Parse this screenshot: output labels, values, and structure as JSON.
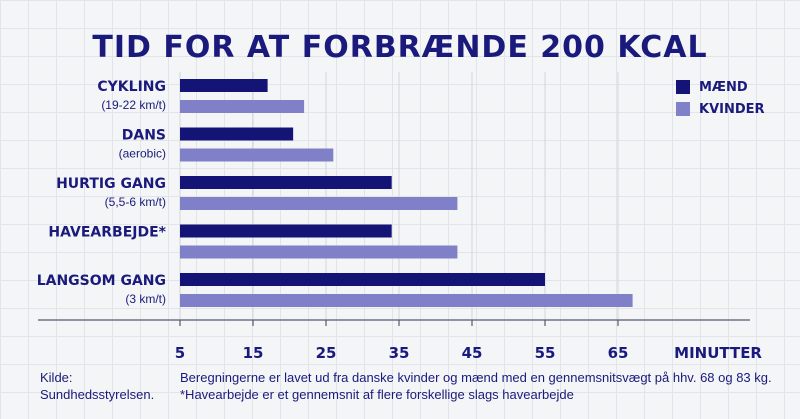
{
  "chart_data": {
    "type": "bar",
    "orientation": "horizontal",
    "title": "TID FOR AT FORBRÆNDE 200 KCAL",
    "xlabel": "MINUTTER",
    "xticks": [
      5,
      15,
      25,
      35,
      45,
      55,
      65
    ],
    "xlim": [
      5,
      70
    ],
    "grid": true,
    "legend_position": "top-right",
    "categories": [
      {
        "label": "CYKLING",
        "sublabel": "(19-22 km/t)"
      },
      {
        "label": "DANS",
        "sublabel": "(aerobic)"
      },
      {
        "label": "HURTIG GANG",
        "sublabel": "(5,5-6 km/t)"
      },
      {
        "label": "HAVEARBEJDE*",
        "sublabel": ""
      },
      {
        "label": "LANGSOM GANG",
        "sublabel": "(3 km/t)"
      }
    ],
    "series": [
      {
        "name": "MÆND",
        "color": "#141476",
        "values": [
          17,
          20.5,
          34,
          34,
          55
        ]
      },
      {
        "name": "KVINDER",
        "color": "#8080c8",
        "values": [
          22,
          26,
          43,
          43,
          67
        ]
      }
    ]
  },
  "footer": {
    "source_lines": [
      "Kilde:",
      "Sundhedsstyrelsen."
    ],
    "note_lines": [
      "Beregningerne er lavet ud fra danske kvinder og mænd med en gennemsnitsvægt på hhv. 68 og 83 kg.",
      "*Havearbejde er et gennemsnit af flere forskellige slags havearbejde"
    ]
  }
}
